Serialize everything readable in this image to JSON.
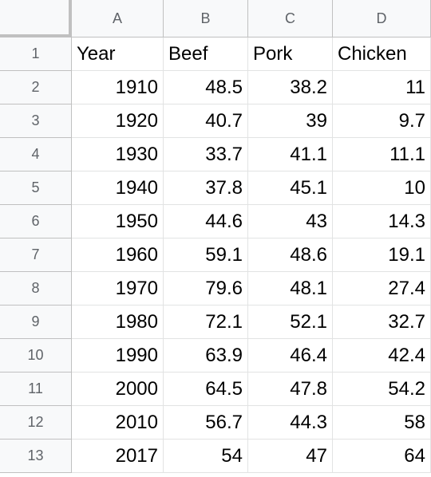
{
  "columns": [
    "A",
    "B",
    "C",
    "D"
  ],
  "header": {
    "row_number": "1",
    "cells": [
      "Year",
      "Beef",
      "Pork",
      "Chicken"
    ]
  },
  "rows": [
    {
      "row_number": "2",
      "cells": [
        "1910",
        "48.5",
        "38.2",
        "11"
      ]
    },
    {
      "row_number": "3",
      "cells": [
        "1920",
        "40.7",
        "39",
        "9.7"
      ]
    },
    {
      "row_number": "4",
      "cells": [
        "1930",
        "33.7",
        "41.1",
        "11.1"
      ]
    },
    {
      "row_number": "5",
      "cells": [
        "1940",
        "37.8",
        "45.1",
        "10"
      ]
    },
    {
      "row_number": "6",
      "cells": [
        "1950",
        "44.6",
        "43",
        "14.3"
      ]
    },
    {
      "row_number": "7",
      "cells": [
        "1960",
        "59.1",
        "48.6",
        "19.1"
      ]
    },
    {
      "row_number": "8",
      "cells": [
        "1970",
        "79.6",
        "48.1",
        "27.4"
      ]
    },
    {
      "row_number": "9",
      "cells": [
        "1980",
        "72.1",
        "52.1",
        "32.7"
      ]
    },
    {
      "row_number": "10",
      "cells": [
        "1990",
        "63.9",
        "46.4",
        "42.4"
      ]
    },
    {
      "row_number": "11",
      "cells": [
        "2000",
        "64.5",
        "47.8",
        "54.2"
      ]
    },
    {
      "row_number": "12",
      "cells": [
        "2010",
        "56.7",
        "44.3",
        "58"
      ]
    },
    {
      "row_number": "13",
      "cells": [
        "2017",
        "54",
        "47",
        "64"
      ]
    }
  ],
  "colors": {
    "header_bg": "#f8f9fa",
    "header_text": "#5f6368",
    "grid_line": "#e2e3e3",
    "header_border": "#c0c0c0"
  }
}
